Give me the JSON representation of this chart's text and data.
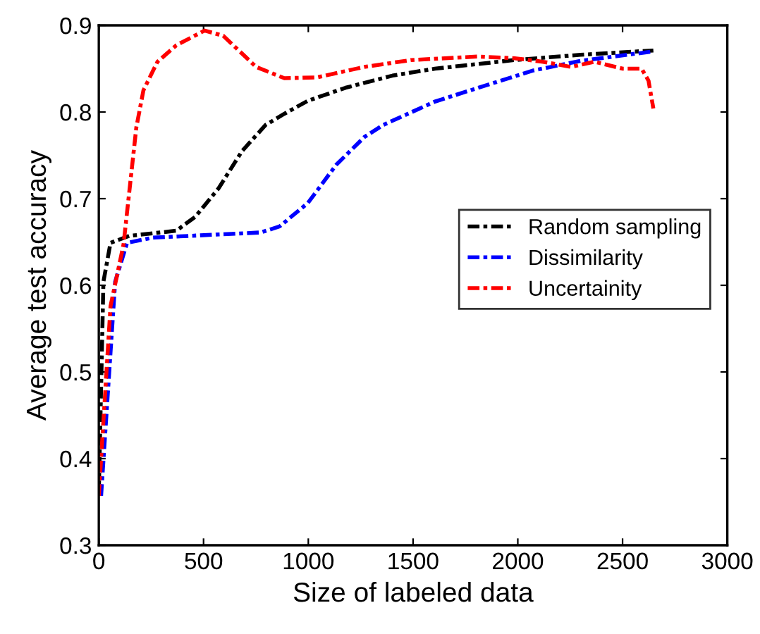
{
  "chart_data": {
    "type": "line",
    "xlabel": "Size of labeled data",
    "ylabel": "Average test accuracy",
    "xlim": [
      0,
      3000
    ],
    "ylim": [
      0.3,
      0.9
    ],
    "xticks": [
      0,
      500,
      1000,
      1500,
      2000,
      2500,
      3000
    ],
    "yticks": [
      0.3,
      0.4,
      0.5,
      0.6,
      0.7,
      0.8,
      0.9
    ],
    "grid": false,
    "legend": "center right",
    "line_style": "dashdot",
    "marker": "none",
    "series": [
      {
        "name": "Random sampling",
        "color": "#000000",
        "x": [
          0,
          22,
          56,
          145,
          370,
          460,
          572,
          684,
          796,
          886,
          998,
          1178,
          1402,
          1604,
          1985,
          2299,
          2647
        ],
        "values": [
          0.361,
          0.604,
          0.649,
          0.657,
          0.663,
          0.679,
          0.712,
          0.755,
          0.785,
          0.798,
          0.813,
          0.828,
          0.842,
          0.85,
          0.86,
          0.866,
          0.871
        ]
      },
      {
        "name": "Dissimilarity",
        "color": "#0000ff",
        "x": [
          11,
          78,
          135,
          258,
          774,
          863,
          998,
          1133,
          1267,
          1357,
          1604,
          1851,
          2075,
          2299,
          2647
        ],
        "values": [
          0.357,
          0.604,
          0.649,
          0.655,
          0.661,
          0.668,
          0.695,
          0.739,
          0.771,
          0.785,
          0.812,
          0.831,
          0.848,
          0.859,
          0.87
        ]
      },
      {
        "name": "Uncertainity",
        "color": "#ff0000",
        "x": [
          0,
          56,
          118,
          179,
          213,
          280,
          370,
          505,
          594,
          751,
          886,
          1043,
          1267,
          1491,
          1806,
          1985,
          2120,
          2254,
          2366,
          2501,
          2591,
          2624,
          2647
        ],
        "values": [
          0.357,
          0.576,
          0.647,
          0.782,
          0.825,
          0.858,
          0.877,
          0.894,
          0.888,
          0.852,
          0.839,
          0.84,
          0.852,
          0.86,
          0.864,
          0.862,
          0.858,
          0.852,
          0.858,
          0.85,
          0.85,
          0.836,
          0.804
        ]
      }
    ]
  }
}
